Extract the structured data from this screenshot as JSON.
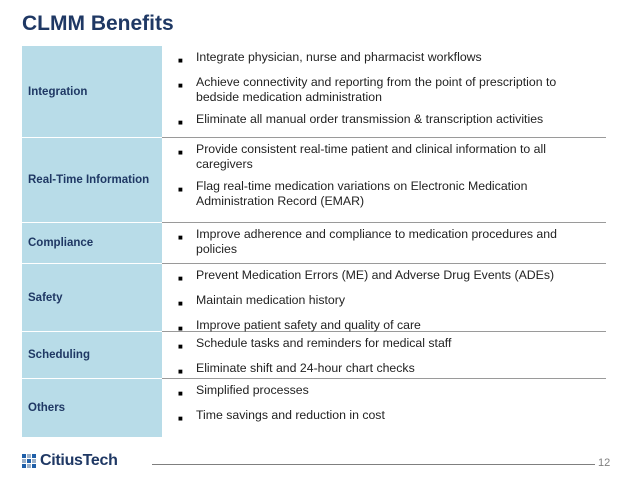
{
  "slide": {
    "title": "CLMM Benefits",
    "page_number": "12"
  },
  "logo": {
    "text": "CitiusTech"
  },
  "bullet_icon": "square-bullet-icon",
  "rows": [
    {
      "category": "Integration",
      "bullets": [
        "Integrate physician, nurse and pharmacist workflows",
        "Achieve connectivity and reporting from the point of prescription to bedside medication administration",
        "Eliminate all manual order transmission & transcription activities"
      ]
    },
    {
      "category": "Real-Time Information",
      "bullets": [
        "Provide consistent real-time patient and clinical information to all caregivers",
        "Flag real-time medication variations on Electronic Medication Administration Record (EMAR)"
      ]
    },
    {
      "category": "Compliance",
      "bullets": [
        "Improve adherence and compliance to medication procedures and policies"
      ]
    },
    {
      "category": "Safety",
      "bullets": [
        "Prevent Medication Errors (ME) and Adverse Drug Events (ADEs)",
        "Maintain medication history",
        "Improve patient safety and quality of care"
      ]
    },
    {
      "category": "Scheduling",
      "bullets": [
        "Schedule tasks and reminders for medical staff",
        "Eliminate shift and 24-hour chart checks"
      ]
    },
    {
      "category": "Others",
      "bullets": [
        "Simplified processes",
        "Time savings and reduction in cost"
      ]
    }
  ]
}
